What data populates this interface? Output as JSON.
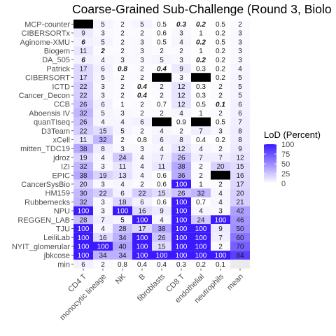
{
  "chart_data": {
    "type": "heatmap",
    "title": "Coarse-Grained Sub-Challenge (Round 3, Biolo",
    "xlabel": "",
    "ylabel": "",
    "x": [
      "CD4 T",
      "monocytic lineage",
      "NK",
      "B",
      "fibroblasts",
      "CD8 T",
      "endothelial",
      "neutrophils",
      "mean"
    ],
    "y": [
      "MCP-counter",
      "CIBERSORTx",
      "Aginome-XMU",
      "Biogem",
      "DA_505",
      "Patrick",
      "CIBERSORT",
      "ICTD",
      "Cancer_Decon",
      "CCB",
      "Aboensis IV",
      "quanTIseq",
      "D3Team",
      "xCell",
      "mitten_TDC19",
      "jdroz",
      "IZI",
      "EPIC",
      "CancerSysBio",
      "HM159",
      "Rubbernecks",
      "NPU",
      "REGGEN_LAB",
      "TJU",
      "LeiliLab",
      "NYIT_glomerular",
      "jbkcose",
      "min"
    ],
    "cells": [
      [
        "",
        "5",
        "2",
        "5",
        "0.5",
        "0.3",
        "0.2",
        "0.5",
        "2"
      ],
      [
        "9",
        "3",
        "2",
        "2",
        "0.6",
        "3",
        "1",
        "0.2",
        "3"
      ],
      [
        "6",
        "5",
        "2",
        "3",
        "0.5",
        "4",
        "0.2",
        "0.5",
        "3"
      ],
      [
        "11",
        "2",
        "2",
        "3",
        "2",
        "2",
        "1",
        "0.2",
        "3"
      ],
      [
        "6",
        "4",
        "3",
        "3",
        "5",
        "3",
        "0.2",
        "0.2",
        "3"
      ],
      [
        "17",
        "6",
        "0.8",
        "2",
        "0.4",
        "9",
        "0.3",
        "0.2",
        "4"
      ],
      [
        "17",
        "5",
        "2",
        "2",
        "",
        "3",
        "",
        "0.2",
        "5"
      ],
      [
        "22",
        "3",
        "2",
        "0.4",
        "2",
        "12",
        "0.3",
        "2",
        "5"
      ],
      [
        "22",
        "3",
        "2",
        "0.4",
        "2",
        "12",
        "0.3",
        "2",
        "5"
      ],
      [
        "26",
        "6",
        "1",
        "2",
        "0.7",
        "12",
        "0.5",
        "0.1",
        "6"
      ],
      [
        "32",
        "5",
        "3",
        "2",
        "2",
        "4",
        "1",
        "2",
        "6"
      ],
      [
        "26",
        "4",
        "4",
        "6",
        "",
        "0.9",
        "",
        "0.5",
        "7"
      ],
      [
        "22",
        "15",
        "5",
        "2",
        "4",
        "2",
        "7",
        "3",
        "8"
      ],
      [
        "11",
        "32",
        "2",
        "0.8",
        "6",
        "8",
        "0.4",
        "0.2",
        "8"
      ],
      [
        "38",
        "8",
        "3",
        "3",
        "4",
        "12",
        "4",
        "2",
        "9"
      ],
      [
        "19",
        "4",
        "24",
        "4",
        "7",
        "26",
        "7",
        "7",
        "12"
      ],
      [
        "32",
        "3",
        "11",
        "4",
        "11",
        "38",
        "2",
        "20",
        "15"
      ],
      [
        "38",
        "19",
        "13",
        "4",
        "0.6",
        "36",
        "2",
        "",
        "16"
      ],
      [
        "20",
        "3",
        "4",
        "2",
        "0.6",
        "100",
        "1",
        "2",
        "17"
      ],
      [
        "30",
        "22",
        "6",
        "22",
        "15",
        "26",
        "32",
        "4",
        "20"
      ],
      [
        "32",
        "3",
        "18",
        "6",
        "0.6",
        "100",
        "0.7",
        "4",
        "21"
      ],
      [
        "100",
        "3",
        "100",
        "16",
        "9",
        "100",
        "4",
        "3",
        "42"
      ],
      [
        "28",
        "7",
        "5",
        "100",
        "4",
        "100",
        "24",
        "100",
        "46"
      ],
      [
        "100",
        "4",
        "28",
        "17",
        "38",
        "100",
        "100",
        "9",
        "50"
      ],
      [
        "100",
        "16",
        "34",
        "100",
        "26",
        "100",
        "100",
        "7",
        "60"
      ],
      [
        "100",
        "100",
        "40",
        "100",
        "15",
        "100",
        "100",
        "2",
        "70"
      ],
      [
        "100",
        "34",
        "34",
        "100",
        "100",
        "100",
        "100",
        "100",
        "84"
      ],
      [
        "6",
        "2",
        "0.8",
        "0.4",
        "0.4",
        "0.3",
        "0.2",
        "0.1",
        ""
      ]
    ],
    "missing": [
      [
        0,
        0
      ],
      [
        6,
        4
      ],
      [
        6,
        6
      ],
      [
        11,
        4
      ],
      [
        11,
        6
      ],
      [
        17,
        7
      ]
    ],
    "bold_italic": [
      [
        0,
        5
      ],
      [
        0,
        6
      ],
      [
        2,
        0
      ],
      [
        2,
        6
      ],
      [
        3,
        1
      ],
      [
        4,
        0
      ],
      [
        4,
        6
      ],
      [
        5,
        2
      ],
      [
        5,
        4
      ],
      [
        7,
        3
      ],
      [
        8,
        3
      ],
      [
        9,
        7
      ]
    ],
    "legend": {
      "title": "LoD (Percent)",
      "ticks": [
        0,
        25,
        50,
        75,
        100
      ],
      "low_color": "#ffffff",
      "high_color": "#3b1aff",
      "placement": "right"
    },
    "missing_color": "#000000",
    "grid": false
  }
}
